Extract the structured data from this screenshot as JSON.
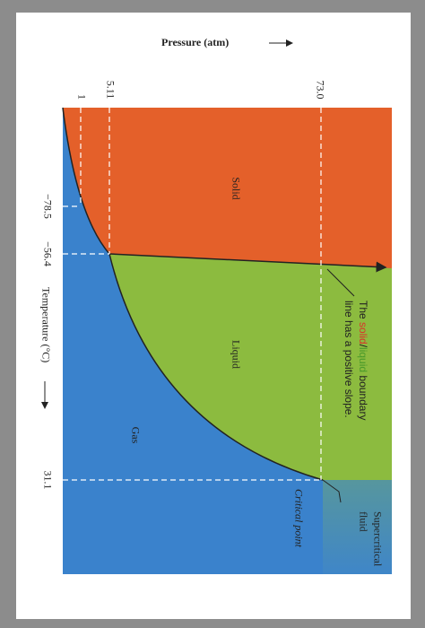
{
  "pressure_axis": {
    "label": "Pressure (atm)",
    "ticks": [
      "73.0",
      "5.11",
      "1"
    ]
  },
  "temperature_axis": {
    "label": "Temperature (°C)",
    "ticks": [
      "−78.5",
      "−56.4",
      "31.1"
    ]
  },
  "regions": {
    "solid": "Solid",
    "liquid": "Liquid",
    "gas": "Gas",
    "supercritical": [
      "Supercritical",
      "fluid"
    ]
  },
  "annotations": {
    "critical_point": "Critical point",
    "boundary": {
      "line1": [
        "The ",
        "solid",
        "/",
        "liquid",
        " boundary"
      ],
      "line2": "line has a positive slope."
    }
  }
}
